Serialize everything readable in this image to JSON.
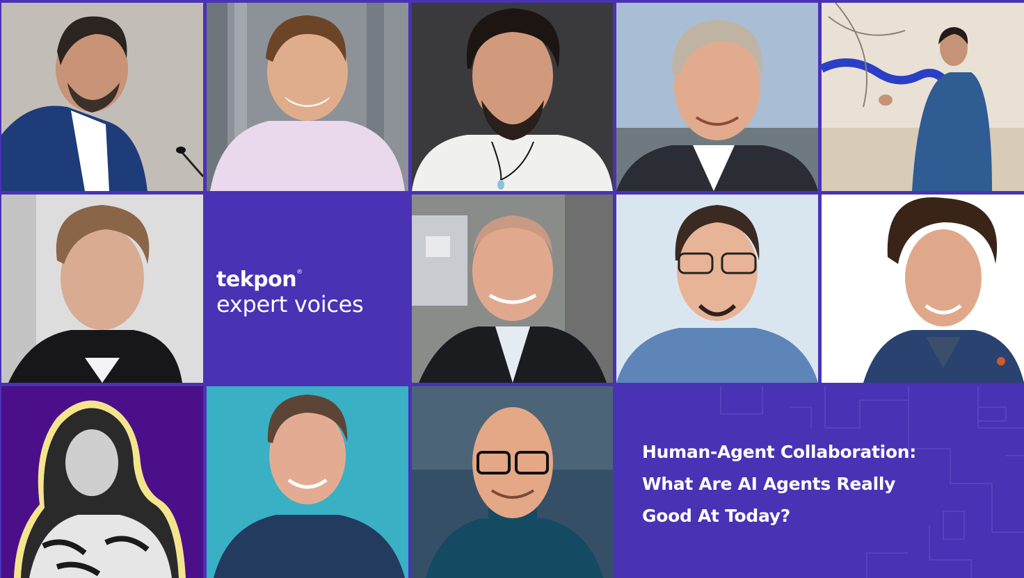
{
  "brand": {
    "name": "tekpon",
    "registered_mark": "®",
    "tagline": "expert voices"
  },
  "headline": {
    "lines": [
      "Human-Agent Collaboration:",
      "What Are AI Agents Really",
      "Good At Today?"
    ]
  },
  "colors": {
    "brand_purple": "#4a32b5",
    "text": "#ffffff"
  },
  "portraits": [
    {
      "id": 1,
      "row": 1,
      "col": 1,
      "icon": "speaker-portrait-icon"
    },
    {
      "id": 2,
      "row": 1,
      "col": 2,
      "icon": "portrait-icon"
    },
    {
      "id": 3,
      "row": 1,
      "col": 3,
      "icon": "portrait-icon"
    },
    {
      "id": 4,
      "row": 1,
      "col": 4,
      "icon": "portrait-icon"
    },
    {
      "id": 5,
      "row": 1,
      "col": 5,
      "icon": "speaker-portrait-icon"
    },
    {
      "id": 6,
      "row": 2,
      "col": 1,
      "icon": "portrait-icon"
    },
    {
      "id": 7,
      "row": 2,
      "col": 3,
      "icon": "portrait-icon"
    },
    {
      "id": 8,
      "row": 2,
      "col": 4,
      "icon": "portrait-icon"
    },
    {
      "id": 9,
      "row": 2,
      "col": 5,
      "icon": "portrait-icon"
    },
    {
      "id": 10,
      "row": 3,
      "col": 1,
      "icon": "portrait-icon"
    },
    {
      "id": 11,
      "row": 3,
      "col": 2,
      "icon": "portrait-icon"
    },
    {
      "id": 12,
      "row": 3,
      "col": 3,
      "icon": "portrait-icon"
    }
  ]
}
